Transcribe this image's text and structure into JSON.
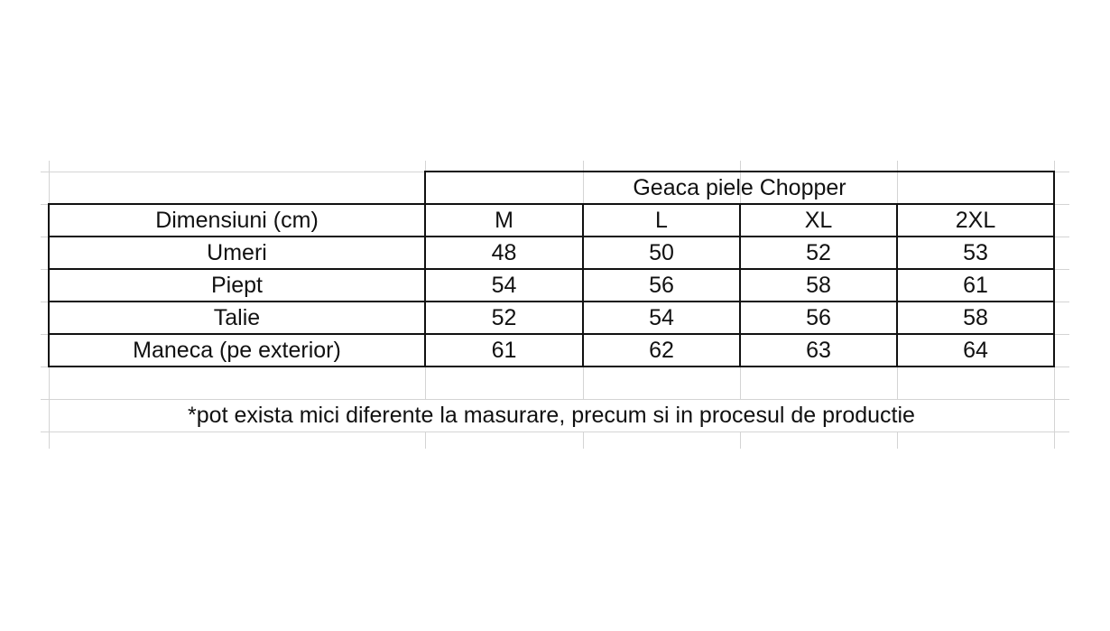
{
  "table": {
    "title": "Geaca piele Chopper",
    "header": [
      "Dimensiuni (cm)",
      "M",
      "L",
      "XL",
      "2XL"
    ],
    "rows": [
      [
        "Umeri",
        "48",
        "50",
        "52",
        "53"
      ],
      [
        "Piept",
        "54",
        "56",
        "58",
        "61"
      ],
      [
        "Talie",
        "52",
        "54",
        "56",
        "58"
      ],
      [
        "Maneca (pe exterior)",
        "61",
        "62",
        "63",
        "64"
      ]
    ],
    "note": "*pot exista mici diferente la masurare, precum si in procesul de productie"
  }
}
